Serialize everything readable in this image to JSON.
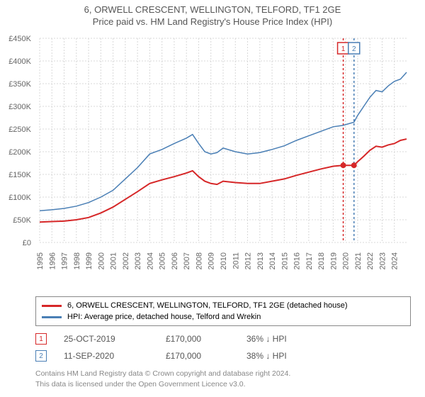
{
  "title": "6, ORWELL CRESCENT, WELLINGTON, TELFORD, TF1 2GE",
  "subtitle": "Price paid vs. HM Land Registry's House Price Index (HPI)",
  "chart": {
    "type": "line",
    "xlim": [
      1995,
      2025
    ],
    "ylim": [
      0,
      450000
    ],
    "ytick_step": 50000,
    "ytick_labels": [
      "£0",
      "£50K",
      "£100K",
      "£150K",
      "£200K",
      "£250K",
      "£300K",
      "£350K",
      "£400K",
      "£450K"
    ],
    "xtick_step": 1,
    "xtick_labels": [
      "1995",
      "1996",
      "1997",
      "1998",
      "1999",
      "2000",
      "2001",
      "2002",
      "2003",
      "2004",
      "2005",
      "2006",
      "2007",
      "2008",
      "2009",
      "2010",
      "2011",
      "2012",
      "2013",
      "2014",
      "2015",
      "2016",
      "2017",
      "2018",
      "2019",
      "2020",
      "2021",
      "2022",
      "2023",
      "2024"
    ],
    "background_color": "#ffffff",
    "grid_color": "#d8d8d8",
    "axis_fontsize": 11,
    "title_fontsize": 13,
    "series": [
      {
        "name": "6, ORWELL CRESCENT, WELLINGTON, TELFORD, TF1 2GE (detached house)",
        "color": "#d62728",
        "line_width": 2,
        "data": [
          [
            1995,
            45000
          ],
          [
            1996,
            46000
          ],
          [
            1997,
            47000
          ],
          [
            1998,
            50000
          ],
          [
            1999,
            55000
          ],
          [
            2000,
            65000
          ],
          [
            2001,
            78000
          ],
          [
            2002,
            95000
          ],
          [
            2003,
            112000
          ],
          [
            2004,
            130000
          ],
          [
            2005,
            138000
          ],
          [
            2006,
            145000
          ],
          [
            2007,
            153000
          ],
          [
            2007.5,
            158000
          ],
          [
            2008,
            145000
          ],
          [
            2008.5,
            135000
          ],
          [
            2009,
            130000
          ],
          [
            2009.5,
            128000
          ],
          [
            2010,
            135000
          ],
          [
            2011,
            132000
          ],
          [
            2012,
            130000
          ],
          [
            2013,
            130000
          ],
          [
            2014,
            135000
          ],
          [
            2015,
            140000
          ],
          [
            2016,
            148000
          ],
          [
            2017,
            155000
          ],
          [
            2018,
            162000
          ],
          [
            2019,
            168000
          ],
          [
            2019.8,
            170000
          ],
          [
            2020.7,
            170000
          ],
          [
            2021,
            178000
          ],
          [
            2021.5,
            190000
          ],
          [
            2022,
            203000
          ],
          [
            2022.5,
            212000
          ],
          [
            2023,
            210000
          ],
          [
            2023.5,
            215000
          ],
          [
            2024,
            218000
          ],
          [
            2024.5,
            225000
          ],
          [
            2025,
            228000
          ]
        ]
      },
      {
        "name": "HPI: Average price, detached house, Telford and Wrekin",
        "color": "#4a7fb5",
        "line_width": 1.5,
        "data": [
          [
            1995,
            70000
          ],
          [
            1996,
            72000
          ],
          [
            1997,
            75000
          ],
          [
            1998,
            80000
          ],
          [
            1999,
            88000
          ],
          [
            2000,
            100000
          ],
          [
            2001,
            115000
          ],
          [
            2002,
            140000
          ],
          [
            2003,
            165000
          ],
          [
            2004,
            195000
          ],
          [
            2005,
            205000
          ],
          [
            2006,
            218000
          ],
          [
            2007,
            230000
          ],
          [
            2007.5,
            238000
          ],
          [
            2008,
            218000
          ],
          [
            2008.5,
            200000
          ],
          [
            2009,
            195000
          ],
          [
            2009.5,
            198000
          ],
          [
            2010,
            208000
          ],
          [
            2011,
            200000
          ],
          [
            2012,
            195000
          ],
          [
            2013,
            198000
          ],
          [
            2014,
            205000
          ],
          [
            2015,
            213000
          ],
          [
            2016,
            225000
          ],
          [
            2017,
            235000
          ],
          [
            2018,
            245000
          ],
          [
            2019,
            255000
          ],
          [
            2019.8,
            258000
          ],
          [
            2020.7,
            265000
          ],
          [
            2021,
            280000
          ],
          [
            2021.5,
            300000
          ],
          [
            2022,
            320000
          ],
          [
            2022.5,
            335000
          ],
          [
            2023,
            332000
          ],
          [
            2023.5,
            345000
          ],
          [
            2024,
            355000
          ],
          [
            2024.5,
            360000
          ],
          [
            2025,
            375000
          ]
        ]
      }
    ],
    "sale_markers": [
      {
        "num": "1",
        "year": 2019.82,
        "color": "#d62728",
        "box_y": 80000
      },
      {
        "num": "2",
        "year": 2020.7,
        "color": "#4a7fb5",
        "box_y": 80000
      }
    ],
    "sale_points": [
      {
        "year": 2019.82,
        "price": 170000
      },
      {
        "year": 2020.7,
        "price": 170000
      }
    ]
  },
  "legend": {
    "items": [
      {
        "label": "6, ORWELL CRESCENT, WELLINGTON, TELFORD, TF1 2GE (detached house)",
        "color": "#d62728"
      },
      {
        "label": "HPI: Average price, detached house, Telford and Wrekin",
        "color": "#4a7fb5"
      }
    ]
  },
  "sales": [
    {
      "num": "1",
      "color": "#d62728",
      "date": "25-OCT-2019",
      "price": "£170,000",
      "delta": "36% ↓ HPI"
    },
    {
      "num": "2",
      "color": "#4a7fb5",
      "date": "11-SEP-2020",
      "price": "£170,000",
      "delta": "38% ↓ HPI"
    }
  ],
  "footnote_line1": "Contains HM Land Registry data © Crown copyright and database right 2024.",
  "footnote_line2": "This data is licensed under the Open Government Licence v3.0."
}
